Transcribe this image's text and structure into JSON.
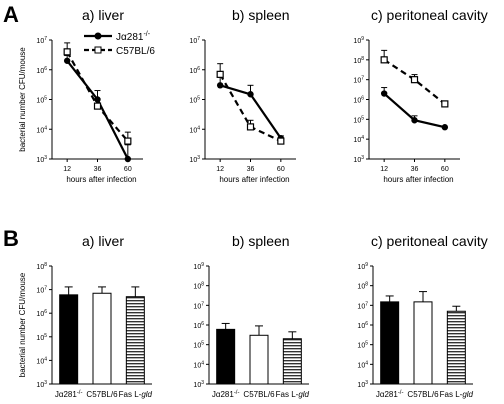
{
  "figure": {
    "panel_a_letter": "A",
    "panel_b_letter": "B"
  },
  "legend": {
    "series": [
      {
        "name_main": "Jα281",
        "name_sup": "-/-",
        "style": "solid",
        "marker": "filled-circle"
      },
      {
        "name_main": "C57BL/6",
        "name_sup": "",
        "style": "dashed",
        "marker": "open-square"
      }
    ]
  },
  "chart_data": [
    {
      "type": "line",
      "title": "a) liver",
      "xlabel": "hours after infection",
      "ylabel": "bacterial number CFU/mouse",
      "x": [
        12,
        36,
        60
      ],
      "ylim_exp": [
        3,
        7
      ],
      "log_y": true,
      "series": [
        {
          "name": "Jα281-/-",
          "values": [
            2000000,
            100000,
            1000
          ],
          "err_up": [
            1000000,
            100000,
            2000
          ]
        },
        {
          "name": "C57BL/6",
          "values": [
            4000000,
            60000,
            4000
          ],
          "err_up": [
            4000000,
            40000,
            4000
          ]
        }
      ]
    },
    {
      "type": "line",
      "title": "b) spleen",
      "xlabel": "hours after infection",
      "ylabel": "",
      "x": [
        12,
        36,
        60
      ],
      "ylim_exp": [
        3,
        7
      ],
      "log_y": true,
      "series": [
        {
          "name": "Jα281-/-",
          "values": [
            300000,
            150000,
            5000
          ],
          "err_up": [
            300000,
            150000,
            1000
          ]
        },
        {
          "name": "C57BL/6",
          "values": [
            700000,
            12000,
            4000
          ],
          "err_up": [
            900000,
            8000,
            0
          ]
        }
      ]
    },
    {
      "type": "line",
      "title": "c) peritoneal cavity",
      "xlabel": "hours after infection",
      "ylabel": "",
      "x": [
        12,
        36,
        60
      ],
      "ylim_exp": [
        3,
        9
      ],
      "log_y": true,
      "series": [
        {
          "name": "Jα281-/-",
          "values": [
            2000000,
            90000,
            40000
          ],
          "err_up": [
            2000000,
            60000,
            0
          ]
        },
        {
          "name": "C57BL/6",
          "values": [
            100000000,
            10000000,
            600000
          ],
          "err_up": [
            200000000,
            8000000,
            0
          ]
        }
      ]
    },
    {
      "type": "bar",
      "title": "a) liver",
      "ylabel": "bacterial number CFU/mouse",
      "categories": [
        {
          "main": "Jα281",
          "sup": "-/-",
          "fill": "solid"
        },
        {
          "main": "C57BL/6",
          "sup": "",
          "fill": "open"
        },
        {
          "main": "Fas L-",
          "italic": "gld",
          "fill": "striped"
        }
      ],
      "values": [
        6000000,
        7000000,
        5000000
      ],
      "err_up": [
        7000000,
        6000000,
        8000000
      ],
      "ylim_exp": [
        3,
        8
      ],
      "log_y": true
    },
    {
      "type": "bar",
      "title": "b) spleen",
      "ylabel": "",
      "categories": [
        {
          "main": "Jα281",
          "sup": "-/-",
          "fill": "solid"
        },
        {
          "main": "C57BL/6",
          "sup": "",
          "fill": "open"
        },
        {
          "main": "Fas L-",
          "italic": "gld",
          "fill": "striped"
        }
      ],
      "values": [
        600000,
        300000,
        200000
      ],
      "err_up": [
        600000,
        600000,
        250000
      ],
      "ylim_exp": [
        3,
        9
      ],
      "log_y": true
    },
    {
      "type": "bar",
      "title": "c) peritoneal cavity",
      "ylabel": "",
      "categories": [
        {
          "main": "Jα281",
          "sup": "-/-",
          "fill": "solid"
        },
        {
          "main": "C57BL/6",
          "sup": "",
          "fill": "open"
        },
        {
          "main": "Fas L-",
          "italic": "gld",
          "fill": "striped"
        }
      ],
      "values": [
        15000000,
        15000000,
        5000000
      ],
      "err_up": [
        15000000,
        35000000,
        4000000
      ],
      "ylim_exp": [
        3,
        9
      ],
      "log_y": true
    }
  ]
}
